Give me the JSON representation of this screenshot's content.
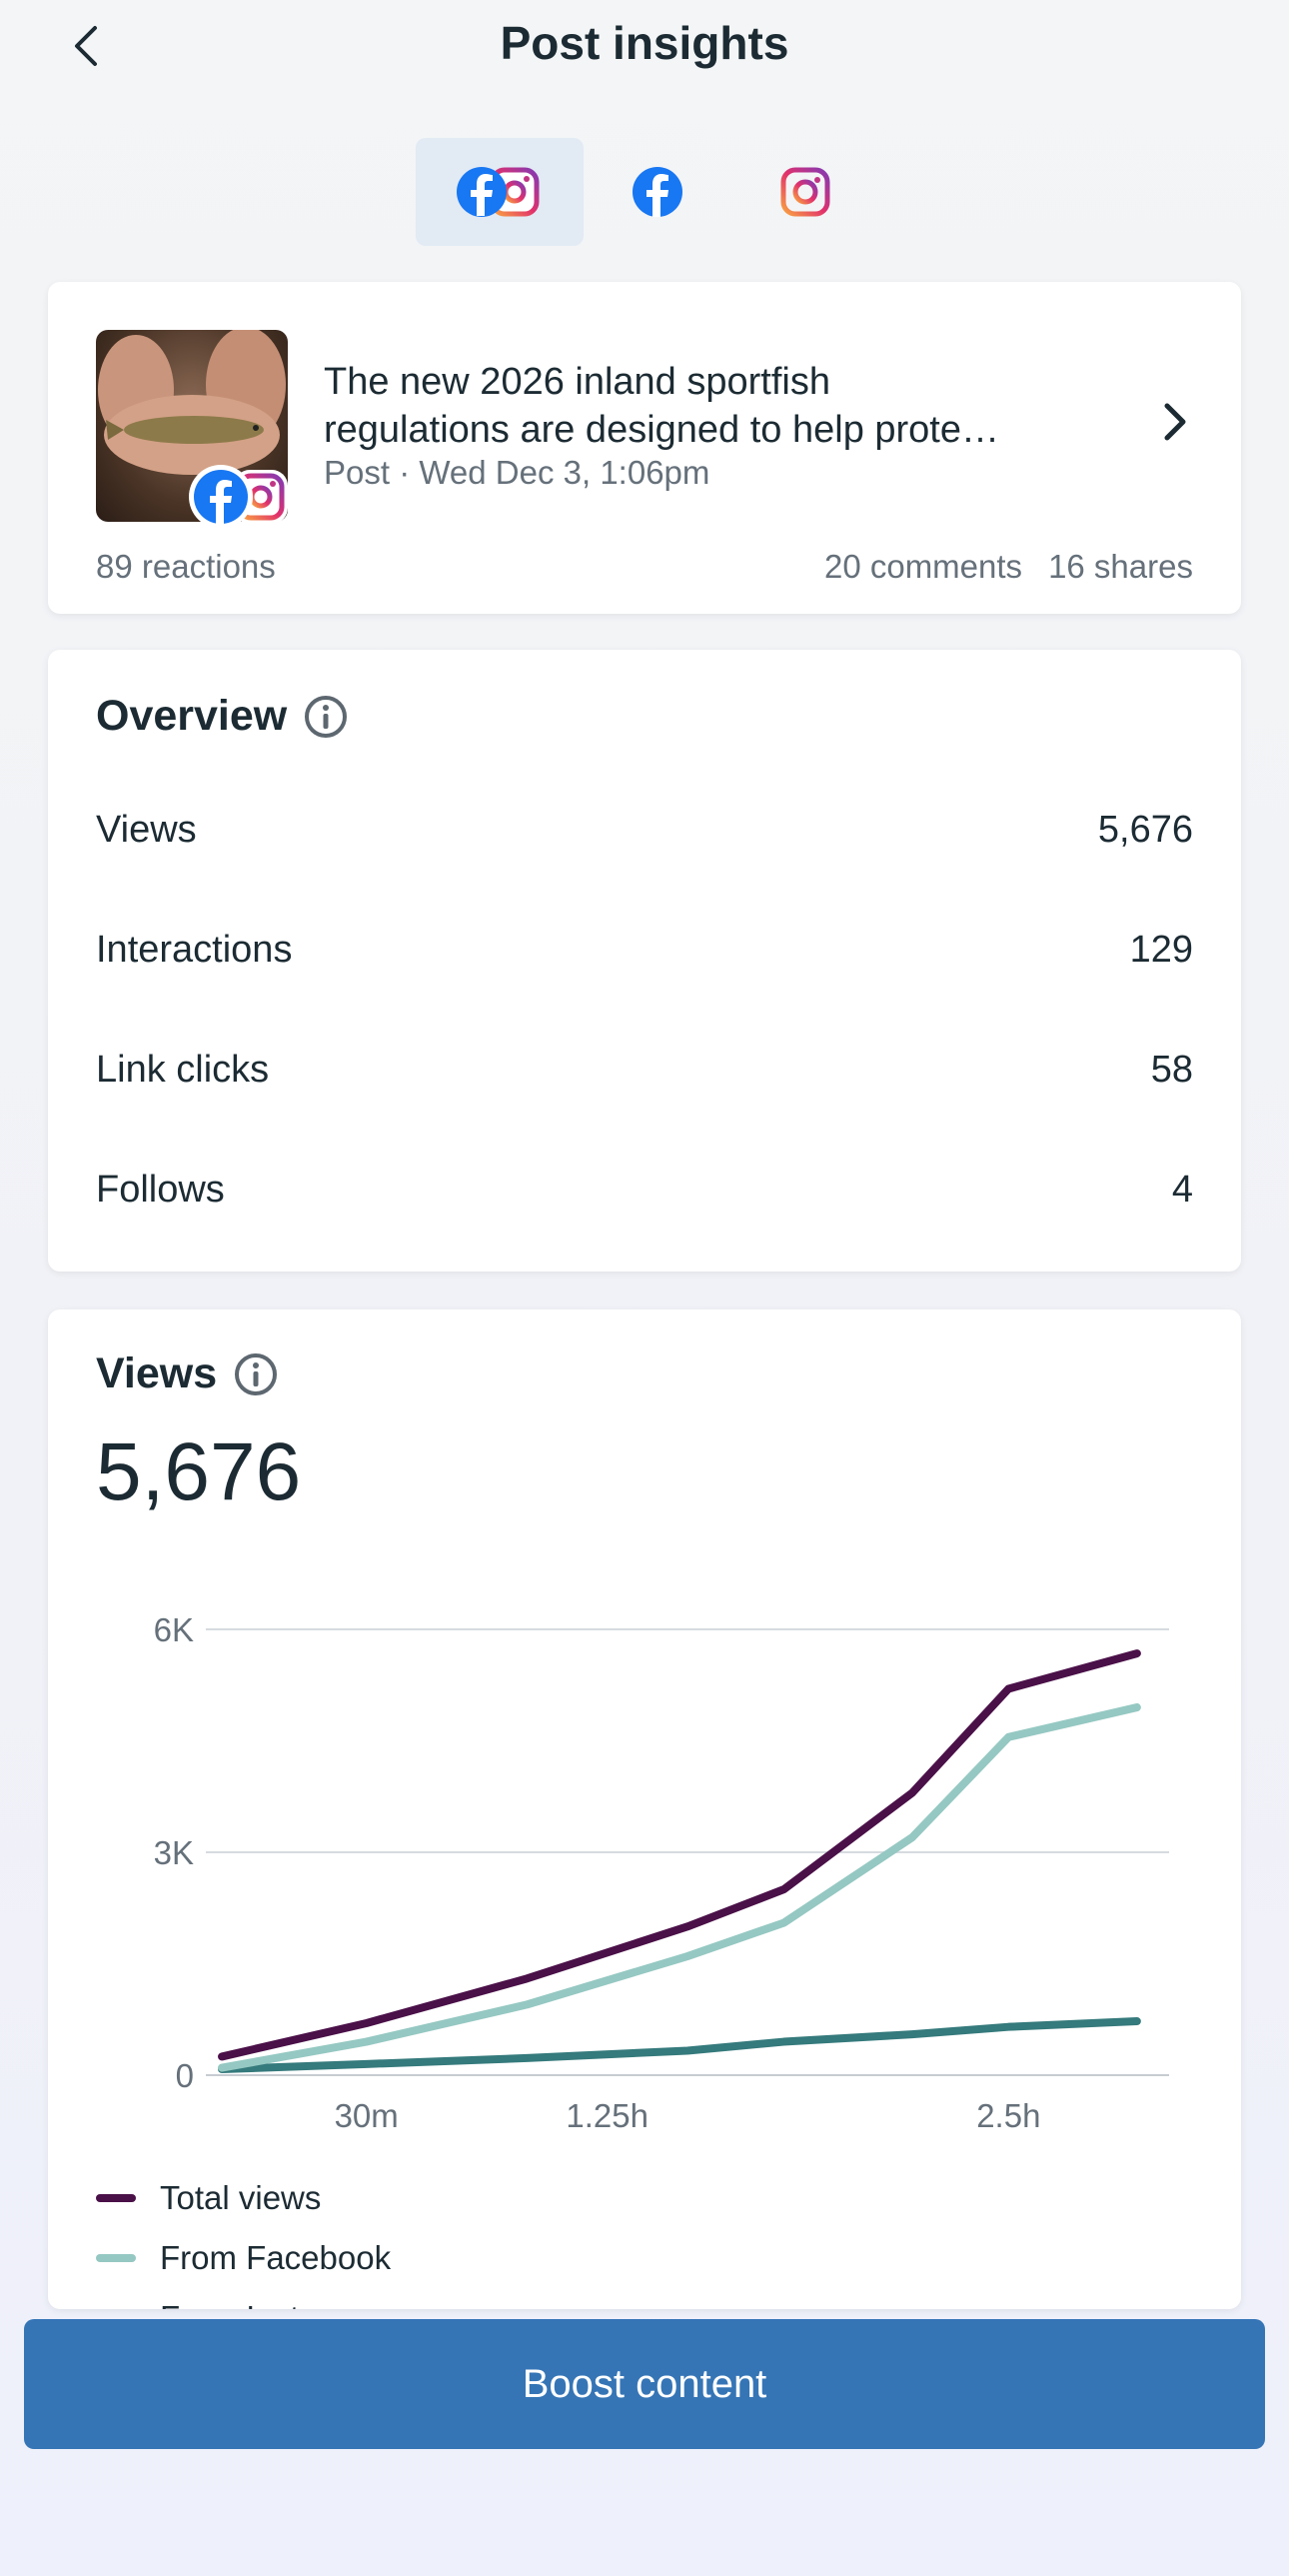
{
  "header": {
    "title": "Post insights",
    "back_icon": "chevron-left-icon"
  },
  "tabs": [
    {
      "icon": "facebook-instagram-icon",
      "active": true
    },
    {
      "icon": "facebook-icon",
      "active": false
    },
    {
      "icon": "instagram-icon",
      "active": false
    }
  ],
  "post": {
    "text_line1": "The new 2026 inland sportfish",
    "text_line2": "regulations are designed to help prote…",
    "meta": "Post · Wed Dec 3, 1:06pm",
    "reactions": "89 reactions",
    "comments": "20 comments",
    "shares": "16 shares"
  },
  "overview": {
    "title": "Overview",
    "rows": [
      {
        "label": "Views",
        "value": "5,676"
      },
      {
        "label": "Interactions",
        "value": "129"
      },
      {
        "label": "Link clicks",
        "value": "58"
      },
      {
        "label": "Follows",
        "value": "4"
      }
    ]
  },
  "views": {
    "title": "Views",
    "total": "5,676",
    "legend": [
      "Total views",
      "From Facebook",
      "From Instagram"
    ]
  },
  "chart_data": {
    "type": "line",
    "x": [
      0.05,
      0.5,
      1.0,
      1.5,
      1.8,
      2.2,
      2.5,
      2.9
    ],
    "x_tick_labels": [
      "30m",
      "1.25h",
      "2.5h"
    ],
    "x_tick_values": [
      0.5,
      1.25,
      2.5
    ],
    "y_tick_labels": [
      "0",
      "3K",
      "6K"
    ],
    "y_tick_values": [
      0,
      3000,
      6000
    ],
    "ylim": [
      0,
      6000
    ],
    "xlim": [
      0,
      3.0
    ],
    "series": [
      {
        "name": "Total views",
        "color": "#4a1048",
        "values": [
          250,
          700,
          1300,
          2000,
          2500,
          3800,
          5200,
          5676
        ]
      },
      {
        "name": "From Facebook",
        "color": "#95c8c2",
        "values": [
          100,
          450,
          950,
          1600,
          2050,
          3200,
          4550,
          4950
        ]
      },
      {
        "name": "From Instagram",
        "color": "#357a7c",
        "values": [
          80,
          150,
          230,
          330,
          450,
          550,
          650,
          726
        ]
      }
    ]
  },
  "colors": {
    "accent": "#3575b6",
    "total": "#4a1048",
    "facebook": "#95c8c2",
    "instagram": "#357a7c"
  },
  "boost": {
    "label": "Boost content"
  }
}
